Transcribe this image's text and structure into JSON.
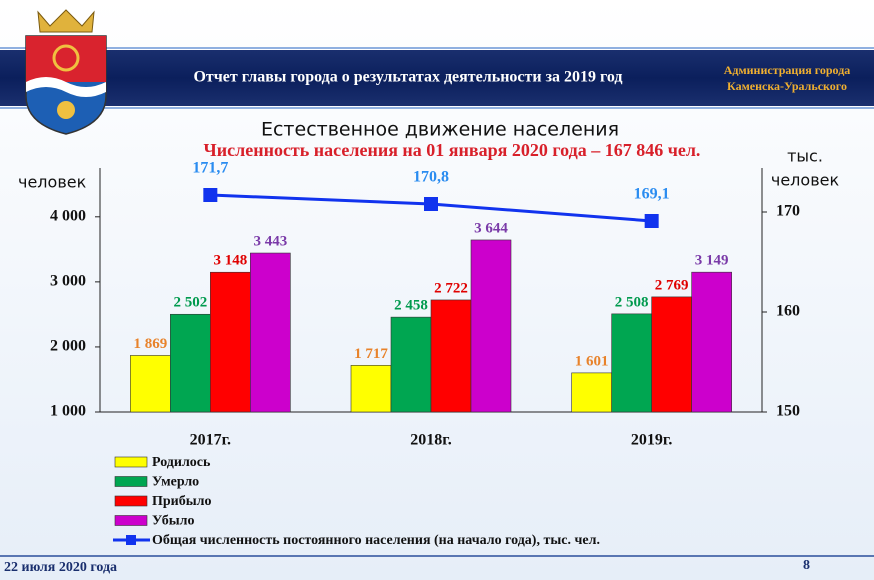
{
  "header": {
    "title": "Отчет главы города о результатах деятельности за 2019 год",
    "org": [
      "Администрация города",
      "Каменска-Уральского"
    ]
  },
  "chart_data": {
    "type": "bar",
    "title": "Естественное движение населения",
    "subtitle": "Численность населения на 01 января 2020 года – 167 846 чел.",
    "y_label": "человек",
    "y2_label": [
      "тыс.",
      "человек"
    ],
    "categories": [
      "2017г.",
      "2018г.",
      "2019г."
    ],
    "series": [
      {
        "name": "Родилось",
        "color": "#ffff00",
        "label_color": "#e8822a",
        "values": [
          1869,
          1717,
          1601
        ],
        "value_labels": [
          "1 869",
          "1 717",
          "1 601"
        ]
      },
      {
        "name": "Умерло",
        "color": "#00a651",
        "label_color": "#009a4e",
        "values": [
          2502,
          2458,
          2508
        ],
        "value_labels": [
          "2 502",
          "2 458",
          "2 508"
        ]
      },
      {
        "name": "Прибыло",
        "color": "#ff0000",
        "label_color": "#e00000",
        "values": [
          3148,
          2722,
          2769
        ],
        "value_labels": [
          "3 148",
          "2 722",
          "2 769"
        ]
      },
      {
        "name": "Убыло",
        "color": "#cc00cc",
        "label_color": "#7a3aa8",
        "values": [
          3443,
          3644,
          3149
        ],
        "value_labels": [
          "3 443",
          "3 644",
          "3 149"
        ]
      },
      {
        "name": "Общая численность постоянного населения (на начало года), тыс. чел.",
        "type": "line",
        "axis": "y2",
        "color": "#1133ee",
        "label_color": "#2a8cf0",
        "values": [
          171.7,
          170.8,
          169.1
        ],
        "value_labels": [
          "171,7",
          "170,8",
          "169,1"
        ]
      }
    ],
    "ylim": [
      1000,
      4750
    ],
    "yticks": [
      {
        "value": 1000,
        "label": "1 000"
      },
      {
        "value": 2000,
        "label": "2 000"
      },
      {
        "value": 3000,
        "label": "3 000"
      },
      {
        "value": 4000,
        "label": "4 000"
      }
    ],
    "y2lim": [
      150,
      174.4
    ],
    "y2ticks": [
      150,
      160,
      170
    ]
  },
  "footer": {
    "date": "22 июля 2020 года",
    "page": "8"
  }
}
